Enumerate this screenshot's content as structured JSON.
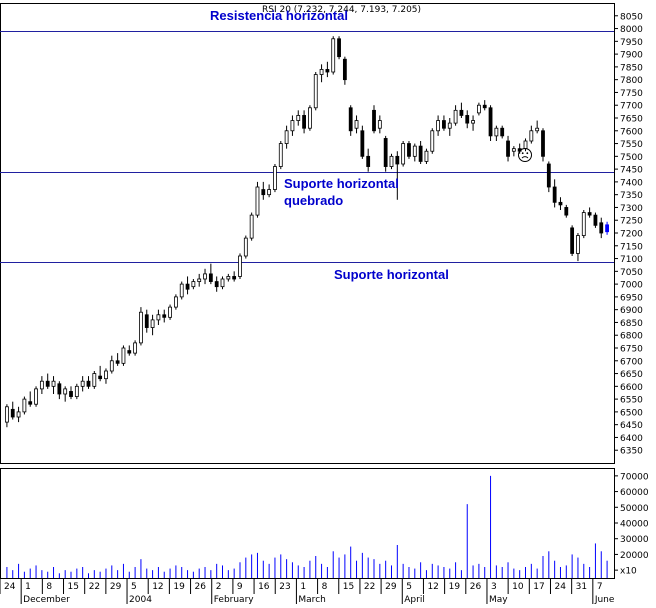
{
  "chart_data": {
    "type": "candlestick",
    "header": "RSI 20 (7.232, 7.244, 7.193, 7.205)",
    "price_axis": {
      "ylim": [
        6300,
        8100
      ],
      "ticks": [
        6350,
        6400,
        6450,
        6500,
        6550,
        6600,
        6650,
        6700,
        6750,
        6800,
        6850,
        6900,
        6950,
        7000,
        7050,
        7100,
        7150,
        7200,
        7250,
        7300,
        7350,
        7400,
        7450,
        7500,
        7550,
        7600,
        7650,
        7700,
        7750,
        7800,
        7850,
        7900,
        7950,
        8000,
        8050
      ]
    },
    "volume_axis": {
      "ylim": [
        5000,
        75000
      ],
      "ticks": [
        10000,
        20000,
        30000,
        40000,
        50000,
        60000,
        70000
      ],
      "tick_labels": [
        "x10",
        "20000",
        "30000",
        "40000",
        "50000",
        "60000",
        "70000"
      ]
    },
    "x_day_labels": [
      "24",
      "1",
      "8",
      "15",
      "22",
      "29",
      "5",
      "12",
      "19",
      "26",
      "2",
      "9",
      "16",
      "23",
      "1",
      "8",
      "15",
      "22",
      "29",
      "5",
      "12",
      "19",
      "26",
      "3",
      "10",
      "17",
      "24",
      "31",
      "7"
    ],
    "x_month_labels": [
      "December",
      "2004",
      "February",
      "March",
      "April",
      "May",
      "June"
    ],
    "horizontal_lines": [
      {
        "value": 7990,
        "label": "Resistencia horizontal"
      },
      {
        "value": 7440,
        "label": "Suporte horizontal quebrado"
      },
      {
        "value": 7085,
        "label": "Suporte horizontal"
      }
    ],
    "annotation_labels": {
      "resistencia": "Resistencia horizontal",
      "suporte_quebrado_1": "Suporte horizontal",
      "suporte_quebrado_2": "quebrado",
      "suporte": "Suporte horizontal"
    },
    "candles": [
      {
        "o": 6460,
        "h": 6530,
        "l": 6440,
        "c": 6520,
        "v": 12000
      },
      {
        "o": 6510,
        "h": 6540,
        "l": 6470,
        "c": 6480,
        "v": 10000
      },
      {
        "o": 6480,
        "h": 6520,
        "l": 6460,
        "c": 6500,
        "v": 14000
      },
      {
        "o": 6500,
        "h": 6560,
        "l": 6490,
        "c": 6550,
        "v": 9000
      },
      {
        "o": 6540,
        "h": 6580,
        "l": 6520,
        "c": 6530,
        "v": 11000
      },
      {
        "o": 6530,
        "h": 6600,
        "l": 6520,
        "c": 6590,
        "v": 13000
      },
      {
        "o": 6590,
        "h": 6640,
        "l": 6570,
        "c": 6620,
        "v": 10000
      },
      {
        "o": 6620,
        "h": 6650,
        "l": 6590,
        "c": 6600,
        "v": 9000
      },
      {
        "o": 6600,
        "h": 6640,
        "l": 6570,
        "c": 6620,
        "v": 12000
      },
      {
        "o": 6610,
        "h": 6620,
        "l": 6550,
        "c": 6570,
        "v": 8000
      },
      {
        "o": 6570,
        "h": 6600,
        "l": 6540,
        "c": 6590,
        "v": 10000
      },
      {
        "o": 6580,
        "h": 6600,
        "l": 6550,
        "c": 6560,
        "v": 9000
      },
      {
        "o": 6560,
        "h": 6610,
        "l": 6550,
        "c": 6600,
        "v": 11000
      },
      {
        "o": 6600,
        "h": 6640,
        "l": 6580,
        "c": 6620,
        "v": 12000
      },
      {
        "o": 6620,
        "h": 6640,
        "l": 6590,
        "c": 6600,
        "v": 8000
      },
      {
        "o": 6600,
        "h": 6660,
        "l": 6590,
        "c": 6650,
        "v": 10000
      },
      {
        "o": 6640,
        "h": 6680,
        "l": 6620,
        "c": 6630,
        "v": 9000
      },
      {
        "o": 6630,
        "h": 6670,
        "l": 6610,
        "c": 6660,
        "v": 11000
      },
      {
        "o": 6660,
        "h": 6720,
        "l": 6650,
        "c": 6700,
        "v": 13000
      },
      {
        "o": 6700,
        "h": 6730,
        "l": 6680,
        "c": 6690,
        "v": 10000
      },
      {
        "o": 6690,
        "h": 6760,
        "l": 6680,
        "c": 6750,
        "v": 14000
      },
      {
        "o": 6740,
        "h": 6760,
        "l": 6720,
        "c": 6730,
        "v": 9000
      },
      {
        "o": 6730,
        "h": 6780,
        "l": 6720,
        "c": 6770,
        "v": 12000
      },
      {
        "o": 6770,
        "h": 6910,
        "l": 6760,
        "c": 6890,
        "v": 17000
      },
      {
        "o": 6880,
        "h": 6900,
        "l": 6810,
        "c": 6830,
        "v": 11000
      },
      {
        "o": 6830,
        "h": 6880,
        "l": 6800,
        "c": 6860,
        "v": 10000
      },
      {
        "o": 6860,
        "h": 6900,
        "l": 6840,
        "c": 6880,
        "v": 12000
      },
      {
        "o": 6880,
        "h": 6900,
        "l": 6850,
        "c": 6870,
        "v": 9000
      },
      {
        "o": 6870,
        "h": 6920,
        "l": 6860,
        "c": 6910,
        "v": 11000
      },
      {
        "o": 6910,
        "h": 6960,
        "l": 6900,
        "c": 6950,
        "v": 13000
      },
      {
        "o": 6950,
        "h": 7010,
        "l": 6940,
        "c": 7000,
        "v": 12000
      },
      {
        "o": 7000,
        "h": 7030,
        "l": 6960,
        "c": 6980,
        "v": 10000
      },
      {
        "o": 6990,
        "h": 7020,
        "l": 6980,
        "c": 7010,
        "v": 9000
      },
      {
        "o": 7010,
        "h": 7040,
        "l": 6990,
        "c": 7020,
        "v": 11000
      },
      {
        "o": 7020,
        "h": 7060,
        "l": 7000,
        "c": 7040,
        "v": 12000
      },
      {
        "o": 7040,
        "h": 7080,
        "l": 7000,
        "c": 7010,
        "v": 10000
      },
      {
        "o": 7010,
        "h": 7030,
        "l": 6970,
        "c": 6990,
        "v": 14000
      },
      {
        "o": 6990,
        "h": 7030,
        "l": 6980,
        "c": 7020,
        "v": 13000
      },
      {
        "o": 7020,
        "h": 7040,
        "l": 7010,
        "c": 7030,
        "v": 10000
      },
      {
        "o": 7030,
        "h": 7050,
        "l": 7010,
        "c": 7020,
        "v": 11000
      },
      {
        "o": 7030,
        "h": 7120,
        "l": 7020,
        "c": 7110,
        "v": 15000
      },
      {
        "o": 7110,
        "h": 7190,
        "l": 7100,
        "c": 7180,
        "v": 18000
      },
      {
        "o": 7180,
        "h": 7280,
        "l": 7170,
        "c": 7270,
        "v": 20000
      },
      {
        "o": 7270,
        "h": 7400,
        "l": 7260,
        "c": 7380,
        "v": 21000
      },
      {
        "o": 7370,
        "h": 7400,
        "l": 7330,
        "c": 7350,
        "v": 16000
      },
      {
        "o": 7350,
        "h": 7390,
        "l": 7340,
        "c": 7370,
        "v": 14000
      },
      {
        "o": 7370,
        "h": 7470,
        "l": 7360,
        "c": 7460,
        "v": 18000
      },
      {
        "o": 7460,
        "h": 7560,
        "l": 7450,
        "c": 7550,
        "v": 20000
      },
      {
        "o": 7550,
        "h": 7620,
        "l": 7530,
        "c": 7600,
        "v": 17000
      },
      {
        "o": 7600,
        "h": 7660,
        "l": 7580,
        "c": 7640,
        "v": 15000
      },
      {
        "o": 7640,
        "h": 7680,
        "l": 7620,
        "c": 7660,
        "v": 13000
      },
      {
        "o": 7660,
        "h": 7680,
        "l": 7590,
        "c": 7610,
        "v": 12000
      },
      {
        "o": 7610,
        "h": 7700,
        "l": 7600,
        "c": 7690,
        "v": 16000
      },
      {
        "o": 7690,
        "h": 7830,
        "l": 7680,
        "c": 7820,
        "v": 19000
      },
      {
        "o": 7820,
        "h": 7860,
        "l": 7790,
        "c": 7840,
        "v": 14000
      },
      {
        "o": 7840,
        "h": 7870,
        "l": 7810,
        "c": 7830,
        "v": 12000
      },
      {
        "o": 7830,
        "h": 7970,
        "l": 7820,
        "c": 7960,
        "v": 22000
      },
      {
        "o": 7960,
        "h": 7970,
        "l": 7880,
        "c": 7890,
        "v": 18000
      },
      {
        "o": 7880,
        "h": 7890,
        "l": 7780,
        "c": 7800,
        "v": 20000
      },
      {
        "o": 7690,
        "h": 7700,
        "l": 7580,
        "c": 7600,
        "v": 25000
      },
      {
        "o": 7610,
        "h": 7660,
        "l": 7590,
        "c": 7640,
        "v": 16000
      },
      {
        "o": 7600,
        "h": 7620,
        "l": 7490,
        "c": 7500,
        "v": 21000
      },
      {
        "o": 7500,
        "h": 7530,
        "l": 7440,
        "c": 7460,
        "v": 18000
      },
      {
        "o": 7680,
        "h": 7700,
        "l": 7590,
        "c": 7600,
        "v": 17000
      },
      {
        "o": 7610,
        "h": 7660,
        "l": 7590,
        "c": 7640,
        "v": 14000
      },
      {
        "o": 7570,
        "h": 7580,
        "l": 7440,
        "c": 7460,
        "v": 16000
      },
      {
        "o": 7460,
        "h": 7510,
        "l": 7450,
        "c": 7500,
        "v": 13000
      },
      {
        "o": 7500,
        "h": 7520,
        "l": 7330,
        "c": 7470,
        "v": 26000
      },
      {
        "o": 7470,
        "h": 7560,
        "l": 7460,
        "c": 7550,
        "v": 14000
      },
      {
        "o": 7550,
        "h": 7560,
        "l": 7490,
        "c": 7500,
        "v": 12000
      },
      {
        "o": 7500,
        "h": 7550,
        "l": 7480,
        "c": 7540,
        "v": 11000
      },
      {
        "o": 7540,
        "h": 7560,
        "l": 7470,
        "c": 7480,
        "v": 15000
      },
      {
        "o": 7480,
        "h": 7530,
        "l": 7470,
        "c": 7520,
        "v": 10000
      },
      {
        "o": 7520,
        "h": 7610,
        "l": 7510,
        "c": 7600,
        "v": 14000
      },
      {
        "o": 7600,
        "h": 7660,
        "l": 7580,
        "c": 7640,
        "v": 13000
      },
      {
        "o": 7640,
        "h": 7660,
        "l": 7600,
        "c": 7610,
        "v": 12000
      },
      {
        "o": 7610,
        "h": 7650,
        "l": 7580,
        "c": 7630,
        "v": 11000
      },
      {
        "o": 7630,
        "h": 7700,
        "l": 7620,
        "c": 7680,
        "v": 15000
      },
      {
        "o": 7680,
        "h": 7710,
        "l": 7650,
        "c": 7660,
        "v": 10000
      },
      {
        "o": 7660,
        "h": 7680,
        "l": 7610,
        "c": 7630,
        "v": 52000
      },
      {
        "o": 7630,
        "h": 7660,
        "l": 7600,
        "c": 7640,
        "v": 13000
      },
      {
        "o": 7670,
        "h": 7710,
        "l": 7660,
        "c": 7700,
        "v": 14000
      },
      {
        "o": 7700,
        "h": 7720,
        "l": 7680,
        "c": 7690,
        "v": 12000
      },
      {
        "o": 7690,
        "h": 7700,
        "l": 7560,
        "c": 7580,
        "v": 70000
      },
      {
        "o": 7580,
        "h": 7620,
        "l": 7560,
        "c": 7610,
        "v": 13000
      },
      {
        "o": 7610,
        "h": 7620,
        "l": 7570,
        "c": 7580,
        "v": 12000
      },
      {
        "o": 7560,
        "h": 7580,
        "l": 7480,
        "c": 7500,
        "v": 15000
      },
      {
        "o": 7520,
        "h": 7540,
        "l": 7500,
        "c": 7530,
        "v": 11000
      },
      {
        "o": 7530,
        "h": 7550,
        "l": 7510,
        "c": 7520,
        "v": 10000
      },
      {
        "o": 7530,
        "h": 7570,
        "l": 7520,
        "c": 7560,
        "v": 12000
      },
      {
        "o": 7560,
        "h": 7620,
        "l": 7550,
        "c": 7600,
        "v": 14000
      },
      {
        "o": 7600,
        "h": 7640,
        "l": 7590,
        "c": 7610,
        "v": 11000
      },
      {
        "o": 7600,
        "h": 7610,
        "l": 7480,
        "c": 7500,
        "v": 19000
      },
      {
        "o": 7470,
        "h": 7480,
        "l": 7360,
        "c": 7380,
        "v": 22000
      },
      {
        "o": 7380,
        "h": 7410,
        "l": 7300,
        "c": 7320,
        "v": 16000
      },
      {
        "o": 7320,
        "h": 7340,
        "l": 7290,
        "c": 7310,
        "v": 12000
      },
      {
        "o": 7300,
        "h": 7310,
        "l": 7260,
        "c": 7270,
        "v": 13000
      },
      {
        "o": 7220,
        "h": 7230,
        "l": 7110,
        "c": 7120,
        "v": 20000
      },
      {
        "o": 7120,
        "h": 7200,
        "l": 7090,
        "c": 7190,
        "v": 18000
      },
      {
        "o": 7190,
        "h": 7290,
        "l": 7180,
        "c": 7280,
        "v": 14000
      },
      {
        "o": 7280,
        "h": 7300,
        "l": 7260,
        "c": 7270,
        "v": 12000
      },
      {
        "o": 7270,
        "h": 7280,
        "l": 7220,
        "c": 7230,
        "v": 27000
      },
      {
        "o": 7240,
        "h": 7260,
        "l": 7180,
        "c": 7200,
        "v": 22000
      },
      {
        "o": 7232,
        "h": 7244,
        "l": 7193,
        "c": 7205,
        "v": 16000
      }
    ]
  }
}
